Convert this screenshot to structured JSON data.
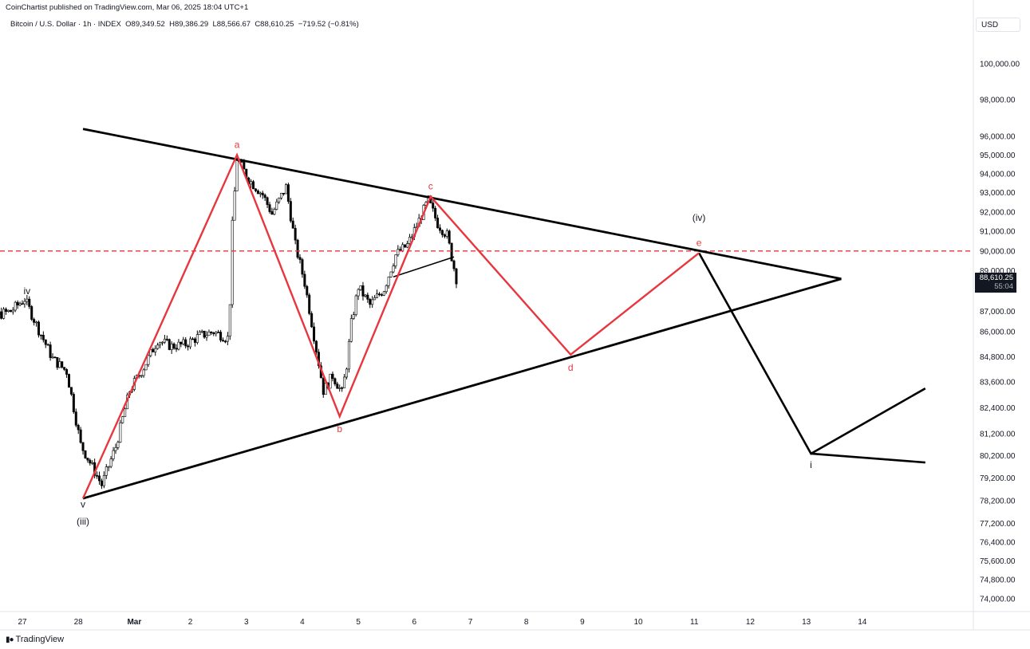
{
  "publisher_line": "CoinChartist published on TradingView.com, Mar 06, 2025 18:04 UTC+1",
  "symbol": {
    "name": "Bitcoin / U.S. Dollar · 1h · INDEX",
    "open": "O89,349.52",
    "high": "H89,386.29",
    "low": "L88,566.67",
    "close": "C88,610.25",
    "change": "−719.52 (−0.81%)"
  },
  "currency_label": "USD",
  "last_price": {
    "value": "88,610.25",
    "countdown": "55:04"
  },
  "brand": "TradingView",
  "colors": {
    "pattern": "#e8363f",
    "trendline": "#000000",
    "candle": "#000000",
    "hline": "#e8363f",
    "grid": "#f0f3fa"
  },
  "chart_data": {
    "type": "candlestick",
    "y_scale": "log",
    "ylim": [
      73000,
      101500
    ],
    "y_tick_labels": [
      "100,000.00",
      "98,000.00",
      "96,000.00",
      "95,000.00",
      "94,000.00",
      "93,000.00",
      "92,000.00",
      "91,000.00",
      "90,000.00",
      "89,000.00",
      "87,000.00",
      "86,000.00",
      "84,800.00",
      "83,600.00",
      "82,400.00",
      "81,200.00",
      "80,200.00",
      "79,200.00",
      "78,200.00",
      "77,200.00",
      "76,400.00",
      "75,600.00",
      "74,800.00",
      "74,000.00"
    ],
    "x_tick_labels": [
      "27",
      "28",
      "Mar",
      "2",
      "3",
      "4",
      "5",
      "6",
      "7",
      "8",
      "9",
      "10",
      "11",
      "12",
      "13",
      "14"
    ],
    "horizontal_line": 90000,
    "pattern_points": [
      {
        "label": "a",
        "date": "2025-03-02 19:00",
        "price": 95000
      },
      {
        "label": "b",
        "date": "2025-03-04 15:00",
        "price": 82000
      },
      {
        "label": "c",
        "date": "2025-03-06 06:00",
        "price": 92800
      },
      {
        "label": "d",
        "date": "2025-03-08 18:00",
        "price": 84900
      },
      {
        "label": "e",
        "date": "2025-03-11 01:00",
        "price": 89900
      }
    ],
    "wave_labels": [
      {
        "label": "iv",
        "date": "2025-02-27 01:00",
        "price": 88000
      },
      {
        "label": "v",
        "date": "2025-02-28 01:00",
        "price": 78050
      },
      {
        "label": "(iii)",
        "date": "2025-02-28 01:00",
        "price": 77300
      },
      {
        "label": "(iv)",
        "date": "2025-03-11 01:00",
        "price": 91700
      },
      {
        "label": "i",
        "date": "2025-03-13 01:00",
        "price": 79800
      }
    ],
    "trendlines": [
      {
        "name": "upper",
        "from": {
          "date": "2025-02-28 01:00",
          "price": 96400
        },
        "to": {
          "date": "2025-03-13 14:00",
          "price": 88600
        }
      },
      {
        "name": "lower",
        "from": {
          "date": "2025-02-28 01:00",
          "price": 78300
        },
        "to": {
          "date": "2025-03-13 14:00",
          "price": 88600
        }
      },
      {
        "name": "small",
        "from": {
          "date": "2025-03-05 14:00",
          "price": 88700
        },
        "to": {
          "date": "2025-03-06 16:00",
          "price": 89700
        }
      }
    ],
    "projection": [
      {
        "date": "2025-03-11 01:00",
        "price": 89900
      },
      {
        "date": "2025-03-13 01:00",
        "price": 80300
      },
      {
        "date": "2025-03-15 02:00",
        "price": 83300
      }
    ],
    "projection_tail": [
      {
        "date": "2025-03-13 01:00",
        "price": 80300
      },
      {
        "date": "2025-03-15 02:00",
        "price": 79900
      }
    ],
    "price_path": [
      {
        "date": "2025-02-26 00:00",
        "price": 87800
      },
      {
        "date": "2025-02-26 06:00",
        "price": 84900
      },
      {
        "date": "2025-02-26 12:00",
        "price": 86800
      },
      {
        "date": "2025-02-26 18:00",
        "price": 87000
      },
      {
        "date": "2025-02-27 00:00",
        "price": 87600
      },
      {
        "date": "2025-02-27 06:00",
        "price": 86100
      },
      {
        "date": "2025-02-27 12:00",
        "price": 84700
      },
      {
        "date": "2025-02-27 18:00",
        "price": 84100
      },
      {
        "date": "2025-02-28 00:00",
        "price": 80700
      },
      {
        "date": "2025-02-28 06:00",
        "price": 79500
      },
      {
        "date": "2025-02-28 09:00",
        "price": 78900
      },
      {
        "date": "2025-02-28 15:00",
        "price": 80600
      },
      {
        "date": "2025-02-28 21:00",
        "price": 83200
      },
      {
        "date": "2025-03-01 03:00",
        "price": 84300
      },
      {
        "date": "2025-03-01 09:00",
        "price": 85600
      },
      {
        "date": "2025-03-01 15:00",
        "price": 85300
      },
      {
        "date": "2025-03-01 21:00",
        "price": 85400
      },
      {
        "date": "2025-03-02 03:00",
        "price": 85800
      },
      {
        "date": "2025-03-02 09:00",
        "price": 86000
      },
      {
        "date": "2025-03-02 15:00",
        "price": 85700
      },
      {
        "date": "2025-03-02 16:00",
        "price": 87500
      },
      {
        "date": "2025-03-02 17:00",
        "price": 91300
      },
      {
        "date": "2025-03-02 19:00",
        "price": 94800
      },
      {
        "date": "2025-03-03 00:00",
        "price": 93700
      },
      {
        "date": "2025-03-03 06:00",
        "price": 92900
      },
      {
        "date": "2025-03-03 10:00",
        "price": 91900
      },
      {
        "date": "2025-03-03 16:00",
        "price": 93300
      },
      {
        "date": "2025-03-03 20:00",
        "price": 90300
      },
      {
        "date": "2025-03-04 00:00",
        "price": 88400
      },
      {
        "date": "2025-03-04 04:00",
        "price": 85800
      },
      {
        "date": "2025-03-04 08:00",
        "price": 83200
      },
      {
        "date": "2025-03-04 12:00",
        "price": 83900
      },
      {
        "date": "2025-03-04 16:00",
        "price": 83100
      },
      {
        "date": "2025-03-04 18:00",
        "price": 84400
      },
      {
        "date": "2025-03-04 20:00",
        "price": 86400
      },
      {
        "date": "2025-03-04 23:00",
        "price": 88200
      },
      {
        "date": "2025-03-05 04:00",
        "price": 87300
      },
      {
        "date": "2025-03-05 10:00",
        "price": 88100
      },
      {
        "date": "2025-03-05 15:00",
        "price": 89800
      },
      {
        "date": "2025-03-05 20:00",
        "price": 90300
      },
      {
        "date": "2025-03-06 00:00",
        "price": 91300
      },
      {
        "date": "2025-03-06 05:00",
        "price": 92600
      },
      {
        "date": "2025-03-06 09:00",
        "price": 91400
      },
      {
        "date": "2025-03-06 13:00",
        "price": 90800
      },
      {
        "date": "2025-03-06 17:00",
        "price": 88610
      }
    ]
  }
}
